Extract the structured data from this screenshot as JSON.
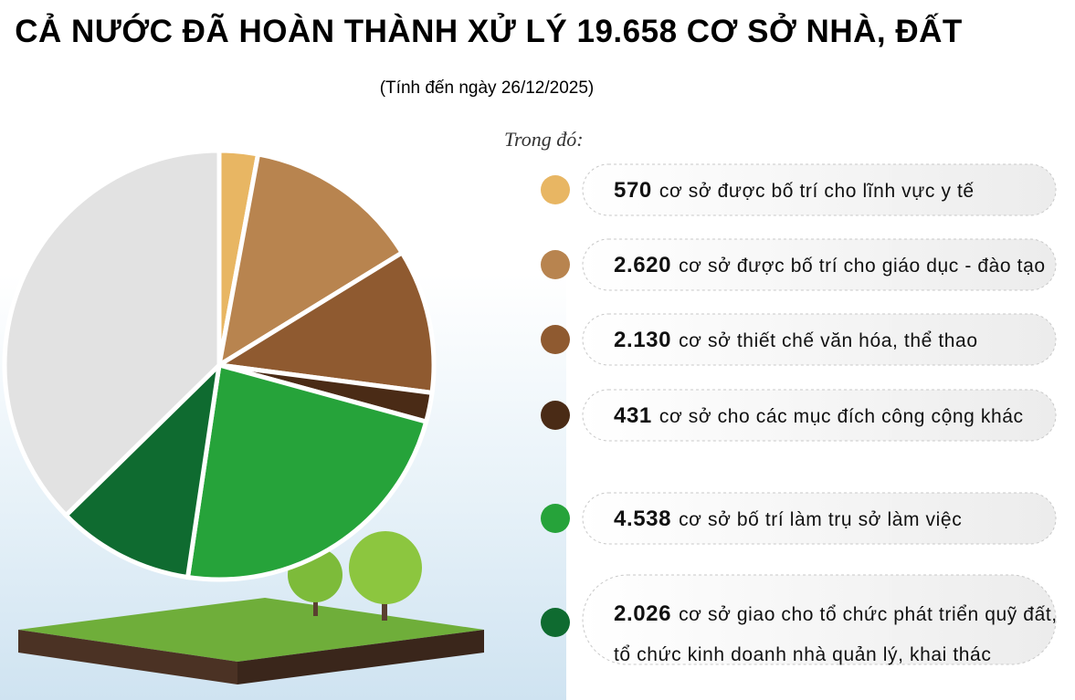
{
  "chart_data": {
    "type": "pie",
    "title": "CẢ NƯỚC ĐÃ HOÀN THÀNH XỬ LÝ 19.658 CƠ SỞ NHÀ, ĐẤT",
    "subtitle": "(Tính đến ngày 26/12/2025)",
    "legend_title": "Trong đó:",
    "categories": [
      [
        "cơ sở được bố trí cho lĩnh vực y tế"
      ],
      [
        "cơ sở được bố trí cho giáo dục - đào tạo"
      ],
      [
        "cơ sở thiết chế văn hóa, thể thao"
      ],
      [
        "cơ sở cho các mục đích công cộng khác"
      ],
      [
        "cơ sở bố trí làm trụ sở làm việc"
      ],
      [
        "cơ sở giao cho tổ chức phát triển quỹ đất,",
        "tổ chức kinh doanh nhà quản lý, khai thác"
      ],
      null
    ],
    "values": [
      570,
      2620,
      2130,
      431,
      4538,
      2026,
      7343
    ],
    "value_labels": [
      "570",
      "2.620",
      "2.130",
      "431",
      "4.538",
      "2.026",
      null
    ],
    "colors": [
      "#e8b663",
      "#b8844f",
      "#8f5a30",
      "#4a2b16",
      "#26a33a",
      "#0f6b30",
      "#e2e2e2"
    ]
  }
}
